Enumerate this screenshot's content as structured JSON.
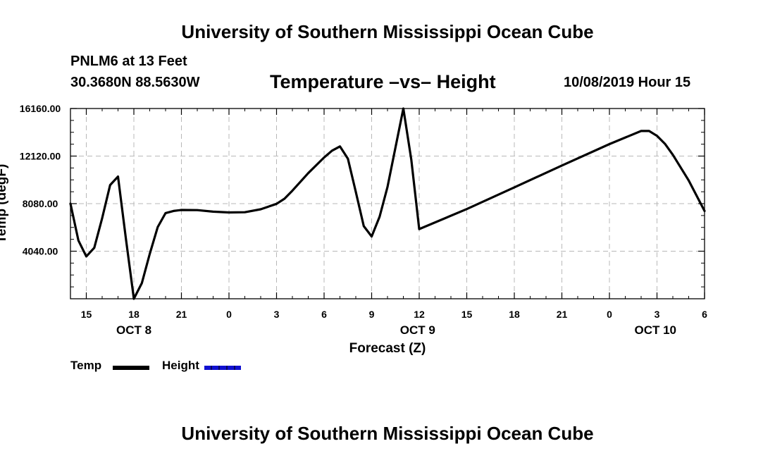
{
  "page": {
    "title_top": "University of Southern Mississippi Ocean Cube",
    "title_bottom": "University of Southern Mississippi Ocean Cube",
    "station": "PNLM6 at 13 Feet",
    "coords": "30.3680N 88.5630W",
    "chart_title": "Temperature –vs– Height",
    "datetime": "10/08/2019 Hour 15"
  },
  "legend": {
    "temp_label": "Temp",
    "temp_color": "#000000",
    "height_label": "Height",
    "height_color": "#1010d0"
  },
  "chart_data": {
    "type": "line",
    "title": "Temperature –vs– Height",
    "xlabel": "Forecast (Z)",
    "ylabel": "Temp (degF)",
    "xlim": [
      14,
      54
    ],
    "ylim": [
      0,
      16160
    ],
    "grid": true,
    "y_ticks": [
      {
        "value": 4040,
        "label": "4040.00"
      },
      {
        "value": 8080,
        "label": "8080.00"
      },
      {
        "value": 12120,
        "label": "12120.00"
      },
      {
        "value": 16160,
        "label": "16160.00"
      }
    ],
    "x_ticks": [
      {
        "value": 15,
        "label": "15"
      },
      {
        "value": 18,
        "label": "18"
      },
      {
        "value": 21,
        "label": "21"
      },
      {
        "value": 24,
        "label": "0"
      },
      {
        "value": 27,
        "label": "3"
      },
      {
        "value": 30,
        "label": "6"
      },
      {
        "value": 33,
        "label": "9"
      },
      {
        "value": 36,
        "label": "12"
      },
      {
        "value": 39,
        "label": "15"
      },
      {
        "value": 42,
        "label": "18"
      },
      {
        "value": 45,
        "label": "21"
      },
      {
        "value": 48,
        "label": "0"
      },
      {
        "value": 51,
        "label": "3"
      },
      {
        "value": 54,
        "label": "6"
      }
    ],
    "date_labels": [
      {
        "value": 18,
        "label": "OCT 8"
      },
      {
        "value": 35.9,
        "label": "OCT 9"
      },
      {
        "value": 50.9,
        "label": "OCT 10"
      }
    ],
    "series": [
      {
        "name": "Temp",
        "color": "#000000",
        "x": [
          14,
          14.5,
          15,
          15.5,
          16,
          16.5,
          17,
          17.5,
          18,
          18.5,
          19,
          19.5,
          20,
          20.5,
          21,
          22,
          23,
          24,
          25,
          26,
          27,
          27.5,
          28,
          29,
          30,
          30.5,
          31,
          31.5,
          32,
          32.5,
          33,
          33.5,
          34,
          35,
          35.5,
          36,
          39,
          42,
          45,
          48,
          50,
          50.5,
          51,
          51.5,
          52,
          53,
          54
        ],
        "values": [
          8080,
          4950,
          3600,
          4330,
          6850,
          9660,
          10380,
          5050,
          0,
          1320,
          3800,
          6080,
          7280,
          7460,
          7540,
          7530,
          7400,
          7330,
          7350,
          7600,
          8060,
          8500,
          9180,
          10670,
          12000,
          12580,
          12940,
          11900,
          9080,
          6170,
          5290,
          6970,
          9500,
          16160,
          11800,
          5920,
          7620,
          9460,
          11320,
          13140,
          14250,
          14250,
          13840,
          13160,
          12230,
          10050,
          7460
        ]
      }
    ]
  }
}
